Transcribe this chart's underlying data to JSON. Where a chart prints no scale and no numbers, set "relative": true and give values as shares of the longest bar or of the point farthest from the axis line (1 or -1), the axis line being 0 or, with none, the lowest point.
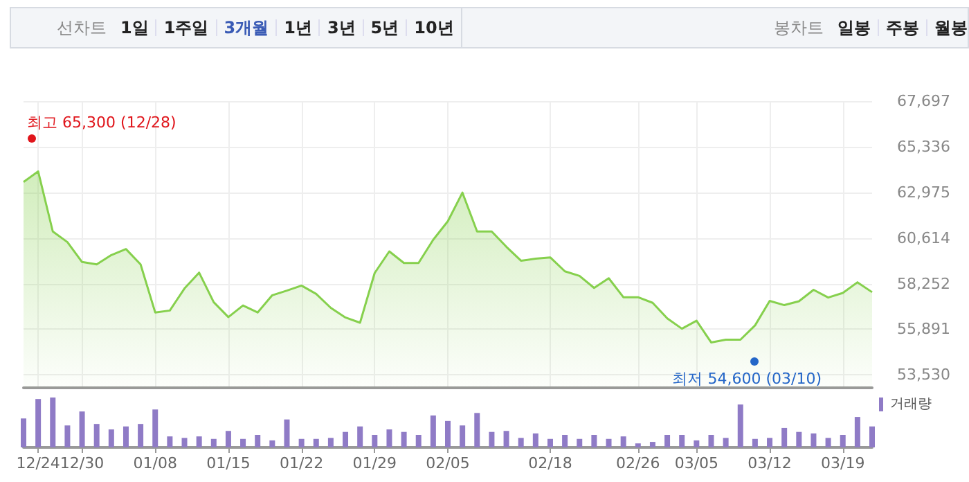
{
  "chart_data": [
    {
      "type": "other",
      "annotations": [
        "선차트",
        "1일",
        "1주일",
        "3개월",
        "1년",
        "3년",
        "5년",
        "10년",
        "봉차트",
        "일봉",
        "주봉",
        "월봉"
      ]
    },
    {
      "type": "area",
      "series": [
        {
          "color": "#86d04d",
          "values": [
            63510,
            64060,
            60950,
            60400,
            59370,
            59250,
            59730,
            60040,
            59250,
            56760,
            56860,
            58000,
            58820,
            57290,
            56520,
            57120,
            56760,
            57650,
            57890,
            58150,
            57720,
            57000,
            56500,
            56230,
            58800,
            59920,
            59320,
            59320,
            60520,
            61480,
            62960,
            60950,
            60950,
            60160,
            59440,
            59540,
            59610,
            58890,
            58650,
            58030,
            58530,
            57550,
            57550,
            57260,
            56450,
            55920,
            56330,
            55210,
            55350,
            55350,
            56090,
            57360,
            57140,
            57340,
            57930,
            57530,
            57770,
            58320,
            57810
          ]
        }
      ],
      "ylim": [
        52860,
        67697
      ],
      "yticks": [
        {
          "value": 53530,
          "label": "53,530"
        },
        {
          "value": 55891,
          "label": "55,891"
        },
        {
          "value": 58252,
          "label": "58,252"
        },
        {
          "value": 60614,
          "label": "60,614"
        },
        {
          "value": 62975,
          "label": "62,975"
        },
        {
          "value": 65336,
          "label": "65,336"
        },
        {
          "value": 67697,
          "label": "67,697"
        }
      ],
      "grid": true,
      "tick_labels": "y",
      "marker": "none",
      "annotations": [
        "최고 65,300 (12/28)",
        "최저 54,600 (03/10)"
      ]
    },
    {
      "type": "bar",
      "relative": true,
      "categories": [
        null,
        "12/24",
        null,
        null,
        "12/30",
        null,
        null,
        null,
        null,
        "01/08",
        null,
        null,
        null,
        null,
        "01/15",
        null,
        null,
        null,
        null,
        "01/22",
        null,
        null,
        null,
        null,
        "01/29",
        null,
        null,
        null,
        null,
        "02/05",
        null,
        null,
        null,
        null,
        null,
        null,
        "02/18",
        null,
        null,
        null,
        null,
        null,
        "02/26",
        null,
        null,
        null,
        "03/05",
        null,
        null,
        null,
        null,
        "03/12",
        null,
        null,
        null,
        null,
        "03/19",
        null,
        null
      ],
      "series": [
        {
          "name": "거래량",
          "color": "#8f7bc6",
          "values": [
            0.58,
            0.97,
            1,
            0.44,
            0.72,
            0.47,
            0.36,
            0.42,
            0.47,
            0.76,
            0.22,
            0.19,
            0.22,
            0.17,
            0.33,
            0.17,
            0.25,
            0.14,
            0.56,
            0.17,
            0.17,
            0.19,
            0.31,
            0.42,
            0.25,
            0.36,
            0.31,
            0.25,
            0.64,
            0.53,
            0.44,
            0.69,
            0.31,
            0.33,
            0.19,
            0.28,
            0.17,
            0.25,
            0.17,
            0.25,
            0.17,
            0.22,
            0.08,
            0.11,
            0.25,
            0.25,
            0.14,
            0.25,
            0.19,
            0.86,
            0.17,
            0.19,
            0.39,
            0.31,
            0.28,
            0.19,
            0.25,
            0.61,
            0.42
          ]
        }
      ],
      "tick_labels": "x",
      "legend": "top right"
    }
  ]
}
